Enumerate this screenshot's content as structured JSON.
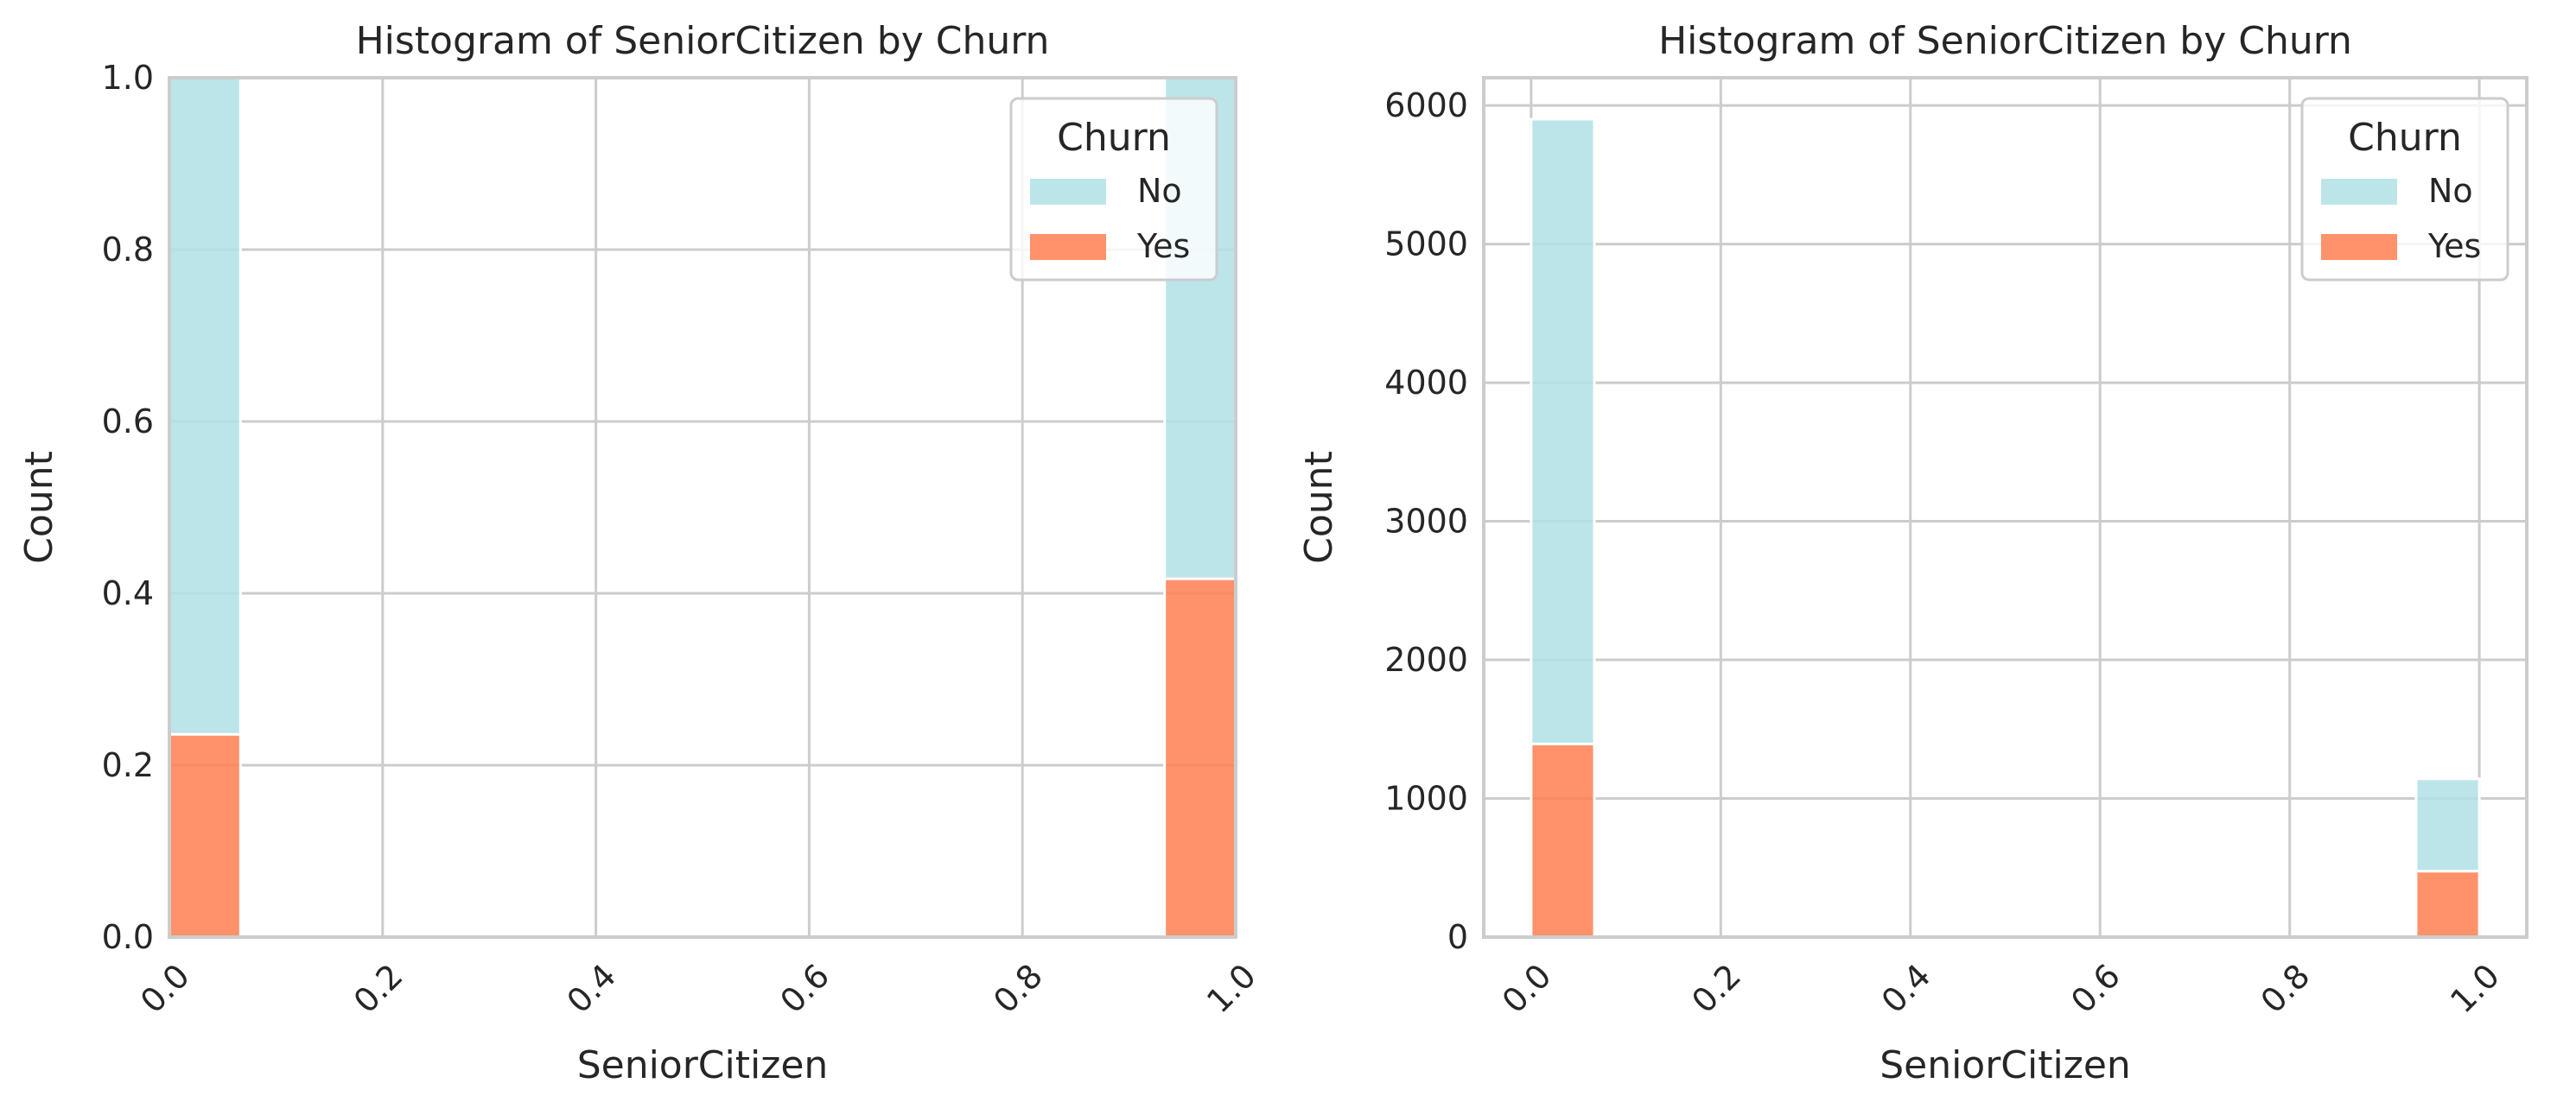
{
  "chart_data": [
    {
      "type": "bar",
      "variant": "histogram-stacked-normalized",
      "title": "Histogram of SeniorCitizen by Churn",
      "xlabel": "SeniorCitizen",
      "ylabel": "Count",
      "xlim": [
        0.0,
        1.0
      ],
      "ylim": [
        0.0,
        1.0
      ],
      "xticks": [
        "0.0",
        "0.2",
        "0.4",
        "0.6",
        "0.8",
        "1.0"
      ],
      "xtick_values": [
        0.0,
        0.2,
        0.4,
        0.6,
        0.8,
        1.0
      ],
      "yticks": [
        "0.0",
        "0.2",
        "0.4",
        "0.6",
        "0.8",
        "1.0"
      ],
      "ytick_values": [
        0.0,
        0.2,
        0.4,
        0.6,
        0.8,
        1.0
      ],
      "xtick_rotation": 45,
      "grid": true,
      "legend": {
        "title": "Churn",
        "position": "top-right",
        "entries": [
          "No",
          "Yes"
        ]
      },
      "bins": [
        {
          "x0": 0.0,
          "x1": 0.0667
        },
        {
          "x0": 0.9333,
          "x1": 1.0
        }
      ],
      "series": [
        {
          "name": "Yes",
          "color": "#ff7f50",
          "values": [
            0.236,
            0.417
          ]
        },
        {
          "name": "No",
          "color": "#b0e0e6",
          "values": [
            0.764,
            0.583
          ]
        }
      ]
    },
    {
      "type": "bar",
      "variant": "histogram-stacked",
      "title": "Histogram of SeniorCitizen by Churn",
      "xlabel": "SeniorCitizen",
      "ylabel": "Count",
      "xlim": [
        -0.05,
        1.05
      ],
      "ylim": [
        0,
        6200
      ],
      "xticks": [
        "0.0",
        "0.2",
        "0.4",
        "0.6",
        "0.8",
        "1.0"
      ],
      "xtick_values": [
        0.0,
        0.2,
        0.4,
        0.6,
        0.8,
        1.0
      ],
      "yticks": [
        "0",
        "1000",
        "2000",
        "3000",
        "4000",
        "5000",
        "6000"
      ],
      "ytick_values": [
        0,
        1000,
        2000,
        3000,
        4000,
        5000,
        6000
      ],
      "xtick_rotation": 45,
      "grid": true,
      "legend": {
        "title": "Churn",
        "position": "top-right",
        "entries": [
          "No",
          "Yes"
        ]
      },
      "bins": [
        {
          "x0": 0.0,
          "x1": 0.0667
        },
        {
          "x0": 0.9333,
          "x1": 1.0
        }
      ],
      "series": [
        {
          "name": "Yes",
          "color": "#ff7f50",
          "values": [
            1393,
            476
          ]
        },
        {
          "name": "No",
          "color": "#b0e0e6",
          "values": [
            4508,
            666
          ]
        }
      ]
    }
  ]
}
